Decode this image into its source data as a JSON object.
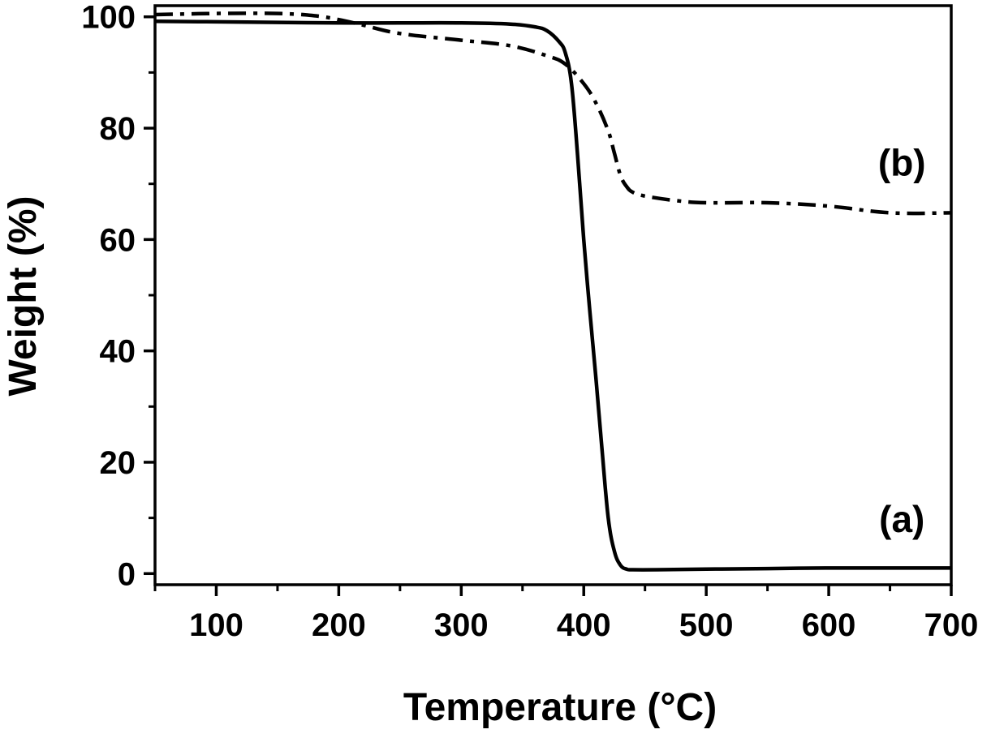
{
  "chart_data": {
    "type": "line",
    "title": "",
    "xlabel": "Temperature (°C)",
    "ylabel": "Weight (%)",
    "xlim": [
      50,
      700
    ],
    "ylim": [
      -2,
      102
    ],
    "x_ticks": [
      100,
      200,
      300,
      400,
      500,
      600,
      700
    ],
    "y_ticks": [
      0,
      20,
      40,
      60,
      80,
      100
    ],
    "x_tick_labels": [
      "100",
      "200",
      "300",
      "400",
      "500",
      "600",
      "700"
    ],
    "y_tick_labels": [
      "0",
      "20",
      "40",
      "60",
      "80",
      "100"
    ],
    "grid": false,
    "legend": "none",
    "series": [
      {
        "label": "(a)",
        "style": "solid",
        "color": "#000000",
        "x": [
          50,
          100,
          150,
          200,
          250,
          300,
          340,
          360,
          370,
          380,
          385,
          390,
          395,
          400,
          405,
          410,
          415,
          420,
          425,
          430,
          435,
          440,
          460,
          500,
          550,
          600,
          650,
          700
        ],
        "y": [
          99.2,
          99.1,
          99.0,
          98.9,
          98.9,
          98.9,
          98.7,
          98.2,
          97.5,
          95.5,
          93.5,
          88.0,
          75.0,
          60.0,
          47.0,
          35.0,
          22.0,
          10.0,
          4.0,
          1.5,
          0.8,
          0.7,
          0.7,
          0.8,
          0.9,
          1.0,
          1.0,
          1.0
        ]
      },
      {
        "label": "(b)",
        "style": "dashdot",
        "color": "#000000",
        "x": [
          50,
          100,
          150,
          180,
          200,
          220,
          250,
          300,
          340,
          370,
          385,
          400,
          410,
          420,
          425,
          430,
          435,
          440,
          450,
          475,
          500,
          550,
          600,
          650,
          700
        ],
        "y": [
          100.4,
          100.6,
          100.6,
          100.2,
          99.5,
          98.5,
          97.0,
          95.8,
          94.8,
          93.0,
          91.5,
          88.0,
          84.5,
          79.5,
          75.5,
          71.5,
          69.5,
          68.5,
          67.8,
          67.0,
          66.6,
          66.6,
          66.0,
          64.8,
          64.8
        ]
      }
    ],
    "annotations": [
      {
        "text": "(a)",
        "x": 620,
        "y": 7.5
      },
      {
        "text": "(b)",
        "x": 620,
        "y": 71.5
      }
    ]
  }
}
